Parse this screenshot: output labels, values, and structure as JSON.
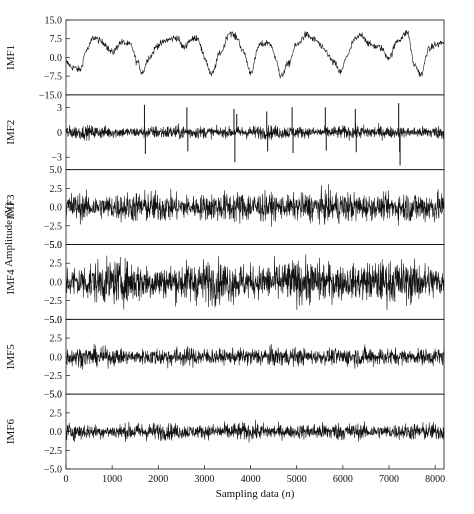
{
  "chart_data": {
    "type": "line",
    "xlabel": "Sampling data (n)",
    "ylabel": "Amplitude (V)",
    "x_range": [
      0,
      8192
    ],
    "x_ticks": [
      0,
      1000,
      2000,
      3000,
      4000,
      5000,
      6000,
      7000,
      8000
    ],
    "panels": [
      {
        "label": "IMF1",
        "ylim": [
          -15,
          15
        ],
        "y_ticks": [
          "15.0",
          "7.5",
          "0.0",
          "−7.5",
          "−15.0"
        ],
        "y_tick_values": [
          15,
          7.5,
          0,
          -7.5,
          -15
        ],
        "signal": {
          "kind": "smooth",
          "x": [
            0,
            150,
            300,
            450,
            600,
            800,
            1000,
            1200,
            1400,
            1550,
            1650,
            1800,
            2000,
            2200,
            2400,
            2550,
            2700,
            2850,
            3000,
            3150,
            3350,
            3550,
            3700,
            3850,
            4000,
            4200,
            4400,
            4550,
            4650,
            4800,
            5000,
            5200,
            5400,
            5600,
            5800,
            5950,
            6100,
            6250,
            6400,
            6600,
            6800,
            7000,
            7200,
            7400,
            7550,
            7700,
            7850,
            8000,
            8192
          ],
          "y": [
            -2,
            -4,
            -5,
            3,
            8,
            6,
            2,
            6,
            5,
            -2,
            -6,
            0,
            5,
            7,
            8,
            4,
            7,
            8,
            0,
            -7,
            2,
            10,
            8,
            2,
            -6,
            5,
            6,
            0,
            -8,
            -3,
            5,
            9,
            7,
            3,
            -2,
            -6,
            1,
            7,
            9,
            5,
            4,
            0,
            7,
            10,
            -3,
            -7,
            3,
            5,
            6
          ],
          "noise": 0.7
        }
      },
      {
        "label": "IMF2",
        "ylim": [
          -4.5,
          4.5
        ],
        "y_ticks": [
          "3",
          "0",
          "−3"
        ],
        "y_tick_values": [
          3,
          0,
          -3
        ],
        "signal": {
          "kind": "noise",
          "amp": 0.35,
          "spikes": [
            {
              "x": 1700,
              "y": 3.3
            },
            {
              "x": 1720,
              "y": -2.6
            },
            {
              "x": 2620,
              "y": 3.0
            },
            {
              "x": 2640,
              "y": -2.3
            },
            {
              "x": 3640,
              "y": 2.8
            },
            {
              "x": 3660,
              "y": -3.6
            },
            {
              "x": 3700,
              "y": 2.2
            },
            {
              "x": 4350,
              "y": 2.5
            },
            {
              "x": 4370,
              "y": -2.3
            },
            {
              "x": 4900,
              "y": 3.0
            },
            {
              "x": 4920,
              "y": -2.5
            },
            {
              "x": 5620,
              "y": 3.0
            },
            {
              "x": 5640,
              "y": -2.2
            },
            {
              "x": 6270,
              "y": 2.8
            },
            {
              "x": 6290,
              "y": -2.4
            },
            {
              "x": 7210,
              "y": 3.5
            },
            {
              "x": 7230,
              "y": -2.4
            },
            {
              "x": 7240,
              "y": -4.0
            }
          ]
        }
      },
      {
        "label": "IMF3",
        "ylim": [
          -5,
          5
        ],
        "y_ticks": [
          "5.0",
          "2.5",
          "0.0",
          "−2.5",
          "−5.0"
        ],
        "y_tick_values": [
          5,
          2.5,
          0,
          -2.5,
          -5
        ],
        "signal": {
          "kind": "noise",
          "amp": 0.9
        }
      },
      {
        "label": "IMF4",
        "ylim": [
          -5,
          5
        ],
        "y_ticks": [
          "5.0",
          "2.5",
          "0.0",
          "−2.5",
          "−5.0"
        ],
        "y_tick_values": [
          5,
          2.5,
          0,
          -2.5,
          -5
        ],
        "signal": {
          "kind": "noise",
          "amp": 1.25
        }
      },
      {
        "label": "IMF5",
        "ylim": [
          -5,
          5
        ],
        "y_ticks": [
          "5.0",
          "2.5",
          "0.0",
          "−2.5",
          "−5.0"
        ],
        "y_tick_values": [
          5,
          2.5,
          0,
          -2.5,
          -5
        ],
        "signal": {
          "kind": "noise",
          "amp": 0.55
        }
      },
      {
        "label": "IMF6",
        "ylim": [
          -5,
          5
        ],
        "y_ticks": [
          "5.0",
          "2.5",
          "0.0",
          "−2.5",
          "−5.0"
        ],
        "y_tick_values": [
          5,
          2.5,
          0,
          -2.5,
          -5
        ],
        "signal": {
          "kind": "noise",
          "amp": 0.5
        }
      }
    ]
  }
}
